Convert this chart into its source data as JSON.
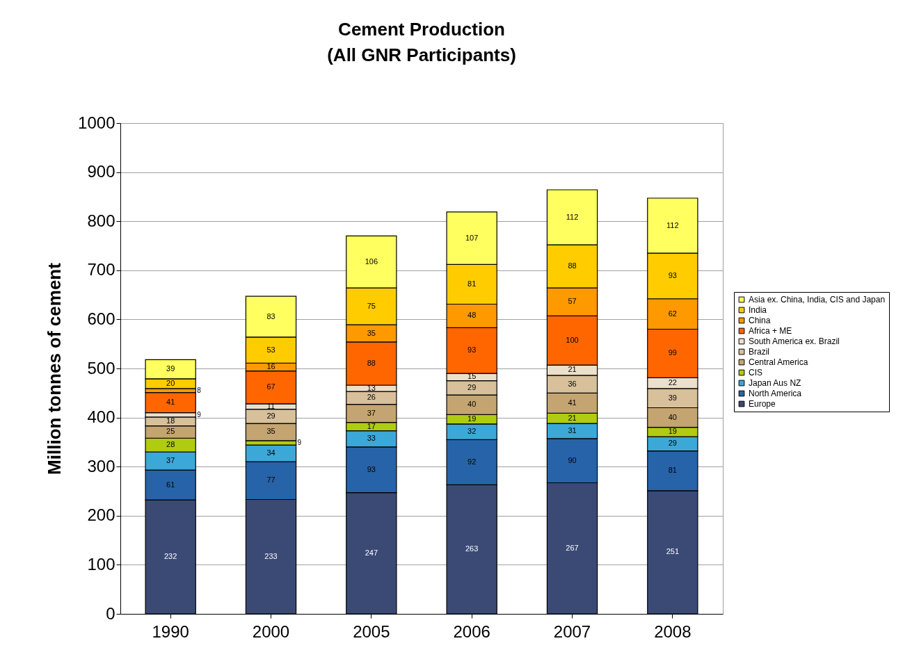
{
  "chart_data": {
    "type": "bar",
    "title": "Cement Production\n(All GNR Participants)",
    "ylabel": "Million tonnes of cement",
    "categories": [
      "1990",
      "2000",
      "2005",
      "2006",
      "2007",
      "2008"
    ],
    "series": [
      {
        "name": "Europe",
        "color": "#3b4a75",
        "values": [
          232,
          233,
          247,
          263,
          267,
          251
        ]
      },
      {
        "name": "North America",
        "color": "#2763a8",
        "values": [
          61,
          77,
          93,
          92,
          90,
          81
        ]
      },
      {
        "name": "Japan Aus NZ",
        "color": "#3ca8d8",
        "values": [
          37,
          34,
          33,
          32,
          31,
          29
        ]
      },
      {
        "name": "CIS",
        "color": "#b0cc10",
        "values": [
          28,
          9,
          17,
          19,
          21,
          19
        ]
      },
      {
        "name": "Central America",
        "color": "#c4a470",
        "values": [
          25,
          35,
          37,
          40,
          41,
          40
        ]
      },
      {
        "name": "Brazil",
        "color": "#d7c09a",
        "values": [
          18,
          29,
          26,
          29,
          36,
          39
        ]
      },
      {
        "name": "South America ex. Brazil",
        "color": "#ebe0cb",
        "values": [
          9,
          11,
          13,
          15,
          21,
          22
        ]
      },
      {
        "name": "Africa + ME",
        "color": "#ff6600",
        "values": [
          41,
          67,
          88,
          93,
          100,
          99
        ]
      },
      {
        "name": "China",
        "color": "#ff9900",
        "values": [
          8,
          16,
          35,
          48,
          57,
          62
        ]
      },
      {
        "name": "India",
        "color": "#ffcc00",
        "values": [
          20,
          53,
          75,
          81,
          88,
          93
        ]
      },
      {
        "name": "Asia ex. China, India, CIS and Japan",
        "color": "#ffff60",
        "values": [
          39,
          83,
          106,
          107,
          112,
          112
        ]
      }
    ],
    "stacked": true,
    "data_labels": true,
    "ylim": [
      0,
      1000
    ],
    "yticks": [
      0,
      100,
      200,
      300,
      400,
      500,
      600,
      700,
      800,
      900,
      1000
    ],
    "grid": "y",
    "legend": "right"
  }
}
